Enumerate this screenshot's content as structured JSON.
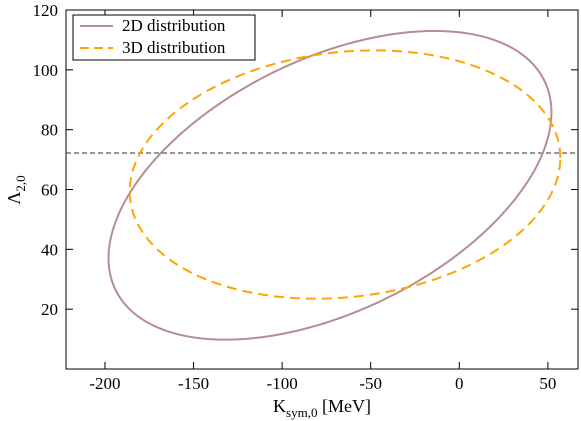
{
  "chart_data": {
    "type": "line",
    "title": "",
    "xlabel": "K",
    "xlabel_sub": "sym,0",
    "xlabel_unit": " [MeV]",
    "ylabel": "Λ",
    "ylabel_sub": "2,0",
    "xlim": [
      -222,
      67
    ],
    "ylim": [
      0,
      120
    ],
    "xticks": [
      -200,
      -150,
      -100,
      -50,
      0,
      50
    ],
    "yticks": [
      20,
      40,
      60,
      80,
      100,
      120
    ],
    "grid": false,
    "legend_position": "top-left",
    "series": [
      {
        "name": "2D distribution",
        "shape": "ellipse",
        "center": [
          -75,
          61.5
        ],
        "x_extent": [
          -198,
          52
        ],
        "y_extent": [
          9.8,
          113
        ],
        "x_at_y_max": -14,
        "color": "#b48f8f",
        "style": "solid"
      },
      {
        "name": "3D distribution",
        "shape": "ellipse",
        "center": [
          -65,
          65
        ],
        "x_extent": [
          -186,
          57
        ],
        "y_extent": [
          23.5,
          106.5
        ],
        "x_at_y_max": -48,
        "color": "#ffa500",
        "style": "dashed"
      }
    ],
    "reference_lines": [
      {
        "orientation": "horizontal",
        "y": 72.2,
        "color": "#333333",
        "style": "dashed"
      }
    ]
  }
}
